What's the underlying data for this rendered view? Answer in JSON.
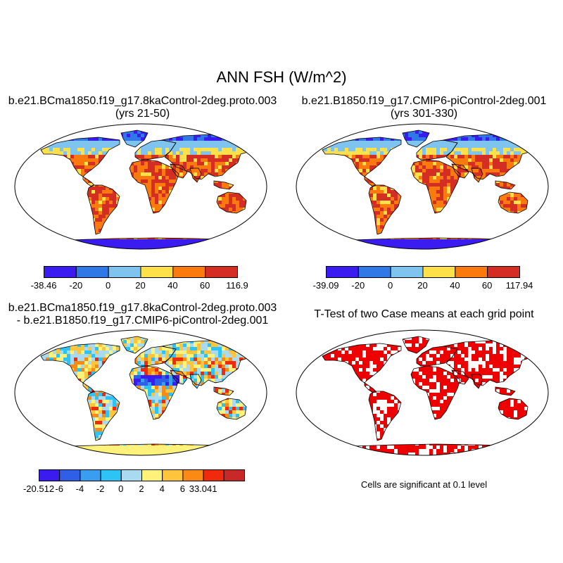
{
  "figure": {
    "title": "ANN FSH (W/m^2)"
  },
  "panels": [
    {
      "id": "case",
      "title_lines": [
        "b.e21.BCma1850.f19_g17.8kaControl-2deg.proto.003",
        "(yrs 21-50)"
      ],
      "type": "filled-map",
      "colorbar": {
        "colors": [
          "#3b1cf0",
          "#2f78e6",
          "#7fc4ee",
          "#fde04a",
          "#fa7a0e",
          "#d42d24"
        ],
        "labels": [
          "-38.46",
          "-20",
          "0",
          "20",
          "40",
          "60",
          "116.9"
        ]
      }
    },
    {
      "id": "control",
      "title_lines": [
        "b.e21.B1850.f19_g17.CMIP6-piControl-2deg.001",
        "(yrs 301-330)"
      ],
      "type": "filled-map",
      "colorbar": {
        "colors": [
          "#3b1cf0",
          "#2f78e6",
          "#7fc4ee",
          "#fde04a",
          "#fa7a0e",
          "#d42d24"
        ],
        "labels": [
          "-39.09",
          "-20",
          "0",
          "20",
          "40",
          "60",
          "117.94"
        ]
      }
    },
    {
      "id": "difference",
      "title_lines": [
        "b.e21.BCma1850.f19_g17.8kaControl-2deg.proto.003",
        "- b.e21.B1850.f19_g17.CMIP6-piControl-2deg.001"
      ],
      "type": "filled-map",
      "colorbar": {
        "colors": [
          "#3b1cf0",
          "#2f5fe6",
          "#3a9ef0",
          "#2dc3f5",
          "#a9daf0",
          "#fff27a",
          "#fdc43c",
          "#fa8a14",
          "#f02a0c",
          "#c82828"
        ],
        "labels": [
          "-20.512",
          "-6",
          "-4",
          "-2",
          "0",
          "2",
          "4",
          "6",
          "33.041"
        ]
      }
    },
    {
      "id": "ttest",
      "title_lines": [
        "T-Test of two Case means at each grid point"
      ],
      "type": "significance-map",
      "significant_color": "#ee0000",
      "note": "Cells are significant at 0.1 level"
    }
  ]
}
